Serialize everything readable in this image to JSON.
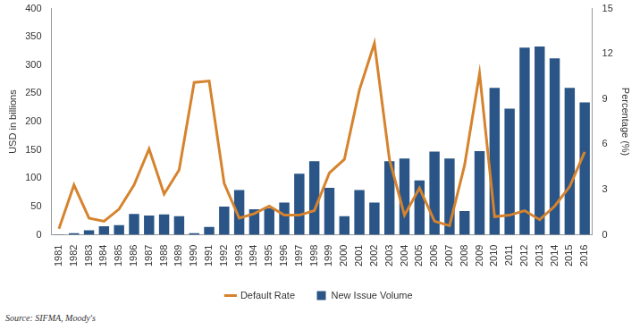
{
  "chart_data": {
    "type": "bar",
    "categories": [
      "1981",
      "1982",
      "1983",
      "1984",
      "1985",
      "1986",
      "1987",
      "1988",
      "1989",
      "1990",
      "1991",
      "1992",
      "1993",
      "1994",
      "1995",
      "1996",
      "1997",
      "1998",
      "1999",
      "2000",
      "2001",
      "2002",
      "2003",
      "2004",
      "2005",
      "2006",
      "2007",
      "2008",
      "2009",
      "2010",
      "2011",
      "2012",
      "2013",
      "2014",
      "2015",
      "2016"
    ],
    "series": [
      {
        "name": "New Issue Volume",
        "type": "bar",
        "color": "#2a5586",
        "values": [
          1,
          3,
          8,
          15,
          17,
          37,
          34,
          36,
          33,
          3,
          14,
          50,
          79,
          45,
          47,
          57,
          108,
          130,
          83,
          33,
          79,
          57,
          130,
          135,
          96,
          147,
          135,
          42,
          148,
          260,
          223,
          331,
          333,
          312,
          260,
          234
        ]
      },
      {
        "name": "Default Rate",
        "type": "line",
        "axis": "y2",
        "color": "#d6832e",
        "values": [
          0.4,
          3.3,
          1.1,
          0.9,
          1.7,
          3.3,
          5.7,
          2.7,
          4.3,
          10.1,
          10.2,
          3.4,
          1.1,
          1.4,
          1.9,
          1.3,
          1.3,
          1.6,
          4.1,
          5.0,
          9.6,
          12.7,
          5.0,
          1.3,
          3.1,
          0.9,
          0.6,
          4.6,
          10.7,
          1.2,
          1.3,
          1.6,
          1.0,
          1.9,
          3.2,
          5.5
        ]
      }
    ],
    "y_label": "USD in billions",
    "ylim": [
      0,
      400
    ],
    "yticks": [
      0,
      50,
      100,
      150,
      200,
      250,
      300,
      350,
      400
    ],
    "y2_label": "Percentage (%)",
    "y2lim": [
      0,
      15
    ],
    "y2ticks": [
      0,
      3,
      6,
      9,
      12,
      15
    ],
    "grid": false,
    "legend": "bottom",
    "source": "Source: SIFMA, Moody's"
  }
}
